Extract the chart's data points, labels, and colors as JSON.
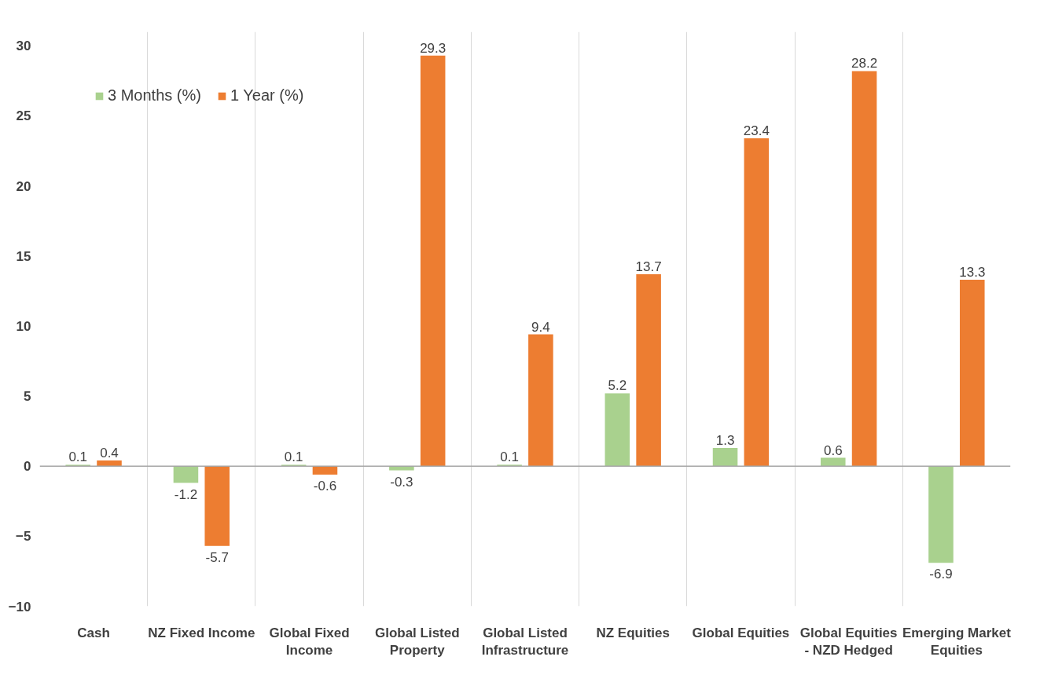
{
  "chart_data": {
    "type": "bar",
    "categories": [
      "Cash",
      "NZ Fixed Income",
      "Global Fixed Income",
      "Global Listed Property",
      "Global Listed Infrastructure",
      "NZ Equities",
      "Global Equities",
      "Global Equities - NZD Hedged",
      "Emerging Market Equities"
    ],
    "series": [
      {
        "name": "3 Months (%)",
        "color": "#a9d18e",
        "values": [
          0.1,
          -1.2,
          0.1,
          -0.3,
          0.1,
          5.2,
          1.3,
          0.6,
          -6.9
        ]
      },
      {
        "name": "1 Year (%)",
        "color": "#ed7d31",
        "values": [
          0.4,
          -5.7,
          -0.6,
          29.3,
          9.4,
          13.7,
          23.4,
          28.2,
          13.3
        ]
      }
    ],
    "ylim": [
      -10,
      31
    ],
    "yticks": [
      -10,
      -5,
      0,
      5,
      10,
      15,
      20,
      25,
      30
    ],
    "grid": "x",
    "legend": "top left",
    "data_labels": true
  }
}
